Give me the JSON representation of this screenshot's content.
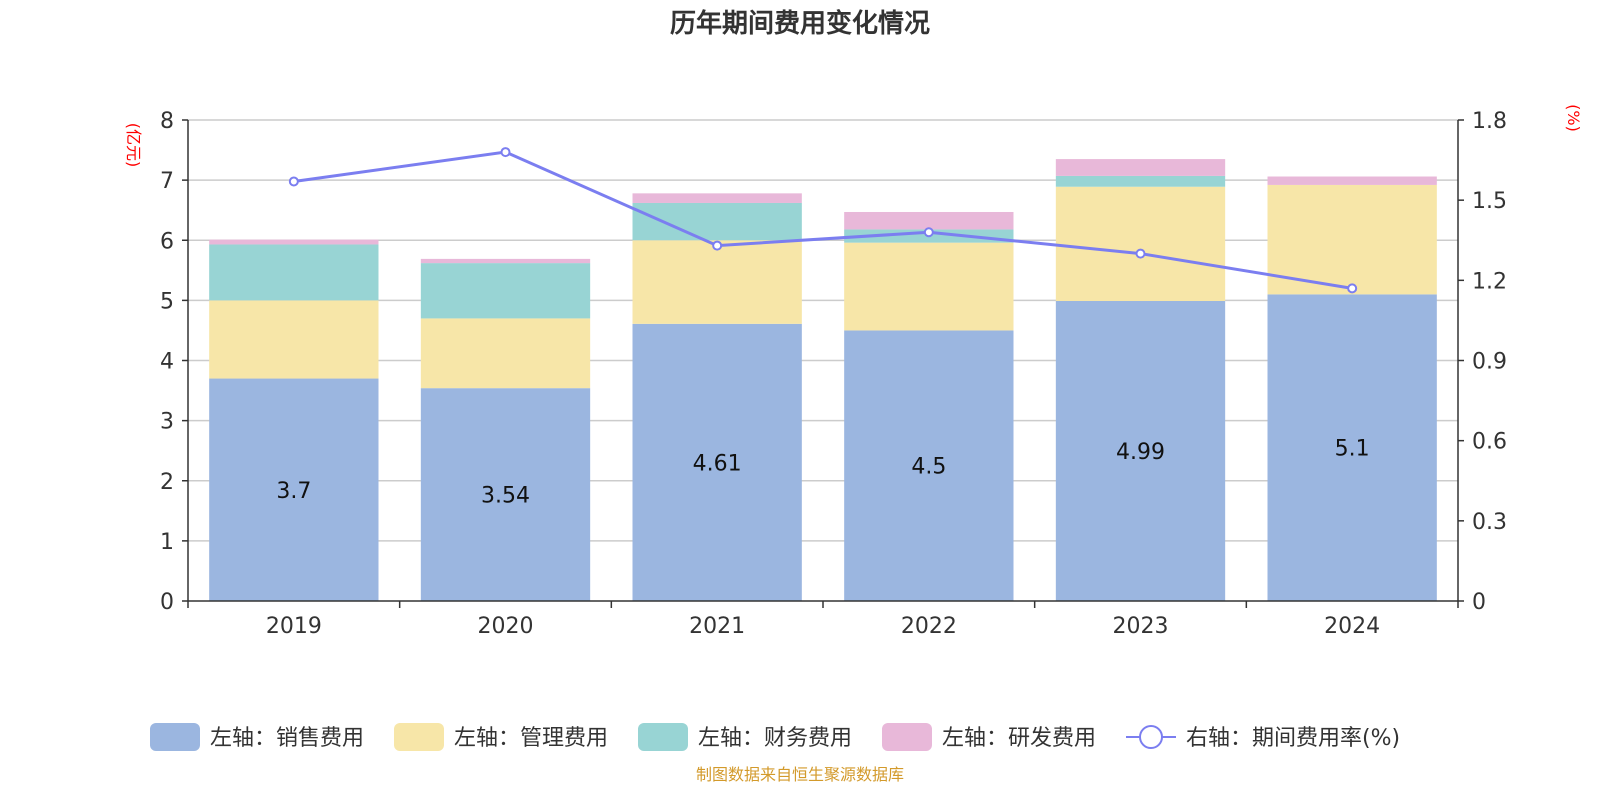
{
  "chart_data": {
    "type": "bar",
    "title": "历年期间费用变化情况",
    "categories": [
      "2019",
      "2020",
      "2021",
      "2022",
      "2023",
      "2024"
    ],
    "left_axis": {
      "unit": "(亿元)",
      "ylim": [
        0,
        8
      ],
      "ticks": [
        "0",
        "1",
        "2",
        "3",
        "4",
        "5",
        "6",
        "7",
        "8"
      ]
    },
    "right_axis": {
      "unit": "(%)",
      "ylim": [
        0,
        1.8
      ],
      "ticks": [
        "0",
        "0.3",
        "0.6",
        "0.9",
        "1.2",
        "1.5",
        "1.8"
      ]
    },
    "stacked": true,
    "series": [
      {
        "name": "左轴：销售费用",
        "type": "bar",
        "axis": "left",
        "color": "#9bb6e0",
        "values": [
          3.7,
          3.54,
          4.61,
          4.5,
          4.99,
          5.1
        ],
        "data_labels": [
          "3.7",
          "3.54",
          "4.61",
          "4.5",
          "4.99",
          "5.1"
        ]
      },
      {
        "name": "左轴：管理费用",
        "type": "bar",
        "axis": "left",
        "color": "#f7e6a8",
        "values": [
          1.3,
          1.16,
          1.39,
          1.46,
          1.9,
          1.82
        ]
      },
      {
        "name": "左轴：财务费用",
        "type": "bar",
        "axis": "left",
        "color": "#98d4d4",
        "values": [
          0.93,
          0.92,
          0.62,
          0.22,
          0.18,
          0.0
        ]
      },
      {
        "name": "左轴：研发费用",
        "type": "bar",
        "axis": "left",
        "color": "#e8b8d9",
        "values": [
          0.08,
          0.07,
          0.16,
          0.29,
          0.28,
          0.14
        ]
      },
      {
        "name": "右轴：期间费用率(%)",
        "type": "line",
        "axis": "right",
        "color": "#7b7ef0",
        "values": [
          1.57,
          1.68,
          1.33,
          1.38,
          1.3,
          1.17
        ]
      }
    ],
    "grid": true,
    "legend": "bottom"
  },
  "source": "制图数据来自恒生聚源数据库"
}
